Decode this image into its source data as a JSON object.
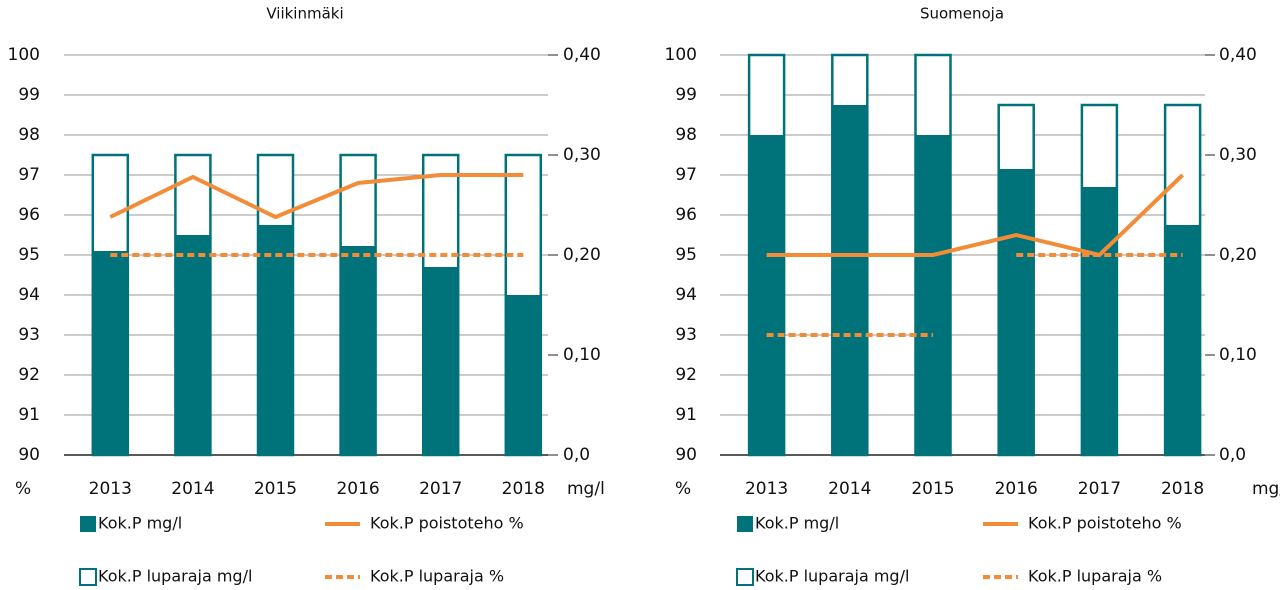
{
  "chart_data": [
    {
      "type": "bar",
      "title": "Viikinmäki",
      "ylabel": "%",
      "y2label": "mg/l",
      "categories": [
        "2013",
        "2014",
        "2015",
        "2016",
        "2017",
        "2018"
      ],
      "ylim": [
        90,
        100
      ],
      "yticks": [
        90,
        91,
        92,
        93,
        94,
        95,
        96,
        97,
        98,
        99,
        100
      ],
      "y2lim": [
        0,
        0.4
      ],
      "y2ticks": [
        {
          "value": 0,
          "label": "0,0"
        },
        {
          "value": 0.1,
          "label": "0,10"
        },
        {
          "value": 0.2,
          "label": "0,20"
        },
        {
          "value": 0.3,
          "label": "0,30"
        },
        {
          "value": 0.4,
          "label": "0,40"
        }
      ],
      "grid": true,
      "series": [
        {
          "name": "Kok.P luparaja mg/l",
          "type": "bar",
          "filled": false,
          "axis": "y2",
          "color": "#00727a",
          "values": [
            0.3,
            0.3,
            0.3,
            0.3,
            0.3,
            0.3
          ]
        },
        {
          "name": "Kok.P mg/l",
          "type": "bar",
          "filled": true,
          "axis": "y2",
          "color": "#00727a",
          "values": [
            0.204,
            0.22,
            0.23,
            0.209,
            0.188,
            0.16
          ]
        },
        {
          "name": "Kok.P poistoteho %",
          "type": "line",
          "dashed": false,
          "color": "#f28c38",
          "values": [
            95.95,
            96.95,
            95.95,
            96.8,
            97.0,
            97.0
          ]
        },
        {
          "name": "Kok.P luparaja %",
          "type": "line",
          "dashed": true,
          "color": "#f28c38",
          "values": [
            95,
            95,
            95,
            95,
            95,
            95
          ]
        }
      ]
    },
    {
      "type": "bar",
      "title": "Suomenoja",
      "ylabel": "%",
      "y2label": "mg/l",
      "categories": [
        "2013",
        "2014",
        "2015",
        "2016",
        "2017",
        "2018"
      ],
      "ylim": [
        90,
        100
      ],
      "yticks": [
        90,
        91,
        92,
        93,
        94,
        95,
        96,
        97,
        98,
        99,
        100
      ],
      "y2lim": [
        0,
        0.4
      ],
      "y2ticks": [
        {
          "value": 0,
          "label": "0,0"
        },
        {
          "value": 0.1,
          "label": "0,10"
        },
        {
          "value": 0.2,
          "label": "0,20"
        },
        {
          "value": 0.3,
          "label": "0,30"
        },
        {
          "value": 0.4,
          "label": "0,40"
        }
      ],
      "grid": true,
      "series": [
        {
          "name": "Kok.P luparaja mg/l",
          "type": "bar",
          "filled": false,
          "axis": "y2",
          "color": "#00727a",
          "values": [
            0.4,
            0.4,
            0.4,
            0.35,
            0.35,
            0.35
          ]
        },
        {
          "name": "Kok.P mg/l",
          "type": "bar",
          "filled": true,
          "axis": "y2",
          "color": "#00727a",
          "values": [
            0.32,
            0.35,
            0.32,
            0.286,
            0.268,
            0.23
          ]
        },
        {
          "name": "Kok.P poistoteho %",
          "type": "line",
          "dashed": false,
          "color": "#f28c38",
          "values": [
            95,
            95,
            95,
            95.5,
            95,
            97
          ]
        },
        {
          "name": "Kok.P luparaja %",
          "type": "line",
          "dashed": true,
          "color": "#f28c38",
          "values": [
            93,
            93,
            93,
            95,
            95,
            95
          ]
        }
      ]
    }
  ]
}
